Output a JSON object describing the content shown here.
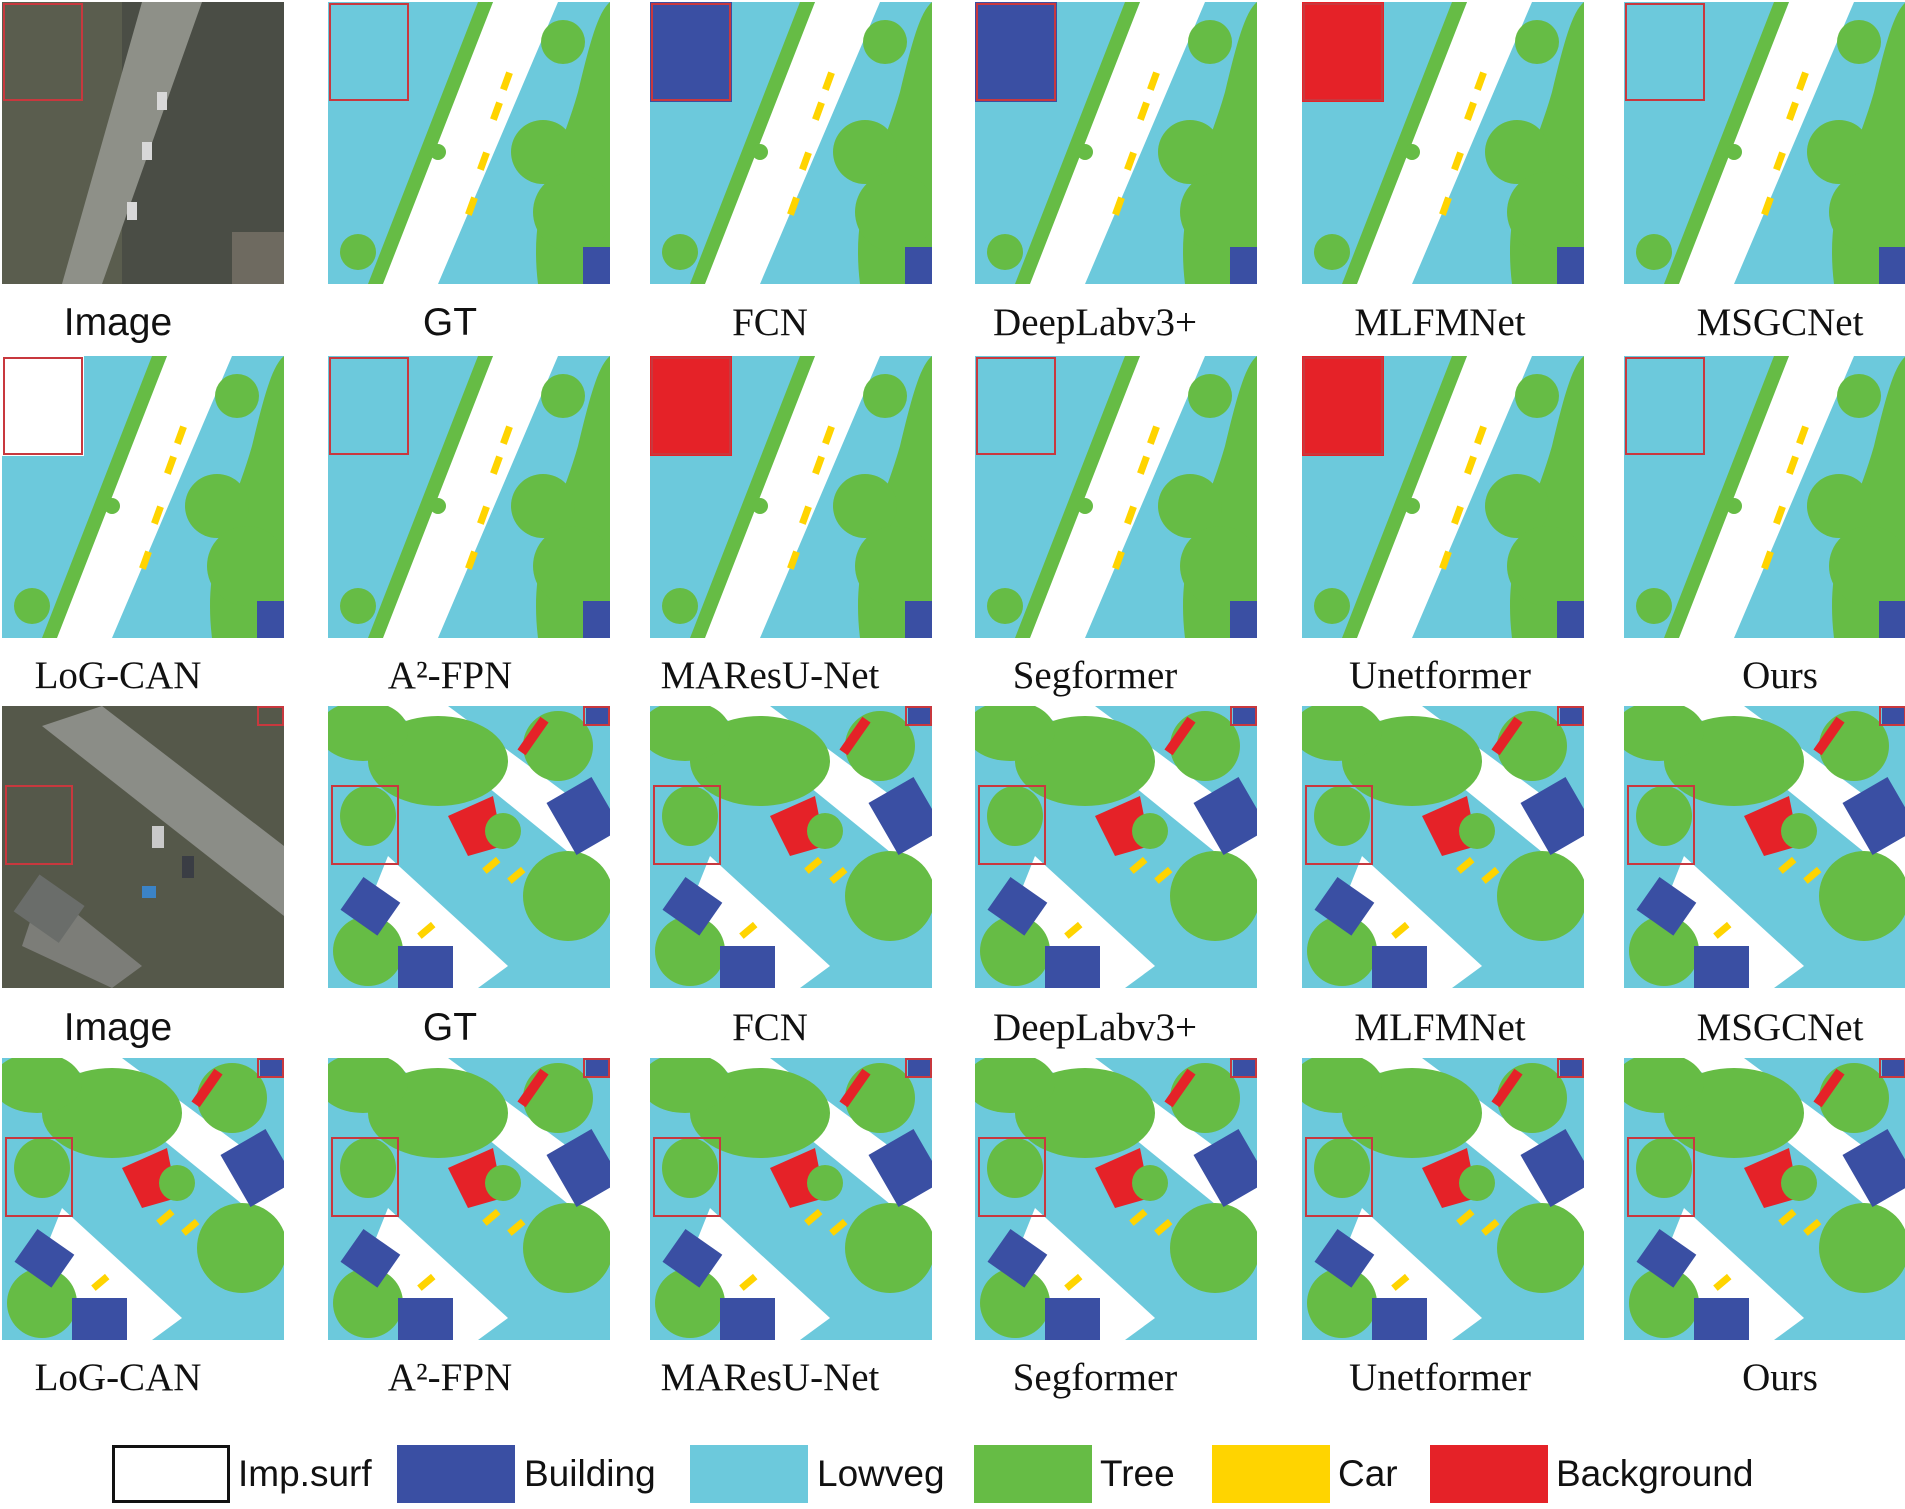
{
  "colors": {
    "imp_surf": "#ffffff",
    "building": "#3a4fa3",
    "lowveg": "#6cc9dc",
    "tree": "#66bc45",
    "car": "#ffd400",
    "background": "#e52228",
    "highlight_box": "#c8383e",
    "photo_dark": "#4a4d45",
    "photo_road": "#8e9088"
  },
  "rows": [
    {
      "id": "row1",
      "labels": [
        "Image",
        "GT",
        "FCN",
        "DeepLabv3+",
        "MLFMNet",
        "MSGCNet"
      ]
    },
    {
      "id": "row2",
      "labels": [
        "LoG-CAN",
        "A²-FPN",
        "MAResU-Net",
        "Segformer",
        "Unetformer",
        "Ours"
      ]
    },
    {
      "id": "row3",
      "labels": [
        "Image",
        "GT",
        "FCN",
        "DeepLabv3+",
        "MLFMNet",
        "MSGCNet"
      ]
    },
    {
      "id": "row4",
      "labels": [
        "LoG-CAN",
        "A²-FPN",
        "MAResU-Net",
        "Segformer",
        "Unetformer",
        "Ours"
      ]
    }
  ],
  "legend": [
    {
      "key": "imp_surf",
      "label": "Imp.surf",
      "color": "#ffffff"
    },
    {
      "key": "building",
      "label": "Building",
      "color": "#3a4fa3"
    },
    {
      "key": "lowveg",
      "label": "Lowveg",
      "color": "#6cc9dc"
    },
    {
      "key": "tree",
      "label": "Tree",
      "color": "#66bc45"
    },
    {
      "key": "car",
      "label": "Car",
      "color": "#ffd400"
    },
    {
      "key": "background",
      "label": "Background",
      "color": "#e52228"
    }
  ]
}
